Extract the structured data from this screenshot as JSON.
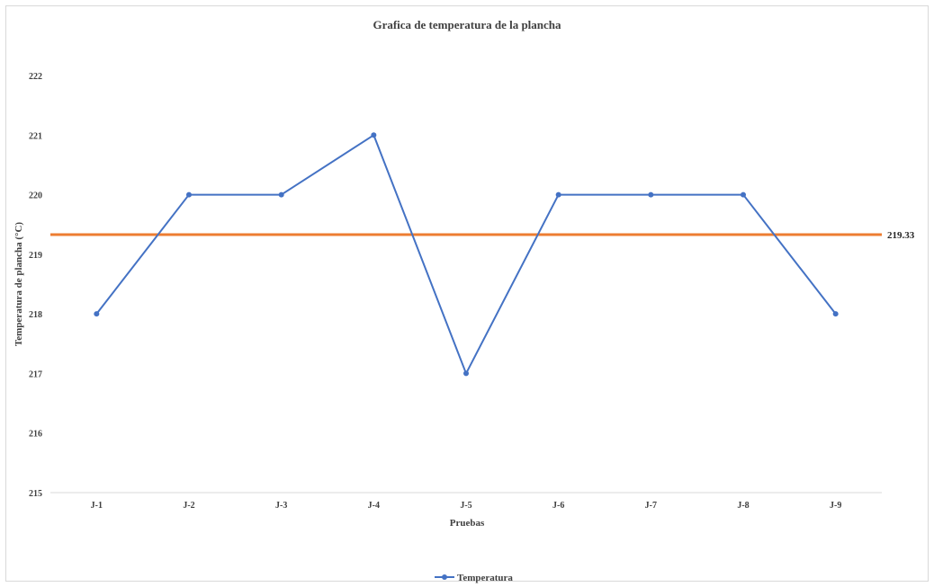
{
  "chart_data": {
    "type": "line",
    "title": "Grafica de temperatura de la plancha",
    "xlabel": "Pruebas",
    "ylabel": "Temperatura de plancha (°C)",
    "categories": [
      "J-1",
      "J-2",
      "J-3",
      "J-4",
      "J-5",
      "J-6",
      "J-7",
      "J-8",
      "J-9"
    ],
    "series": [
      {
        "name": "Temperatura",
        "values": [
          218,
          220,
          220,
          221,
          217,
          220,
          220,
          220,
          218
        ],
        "color": "#4472c4"
      }
    ],
    "reference_line": {
      "value": 219.33,
      "label": "219.33",
      "color": "#ed7d31"
    },
    "yticks": [
      215,
      216,
      217,
      218,
      219,
      220,
      221,
      222
    ],
    "ylim": [
      215,
      222
    ],
    "grid": false,
    "legend": "bottom"
  }
}
